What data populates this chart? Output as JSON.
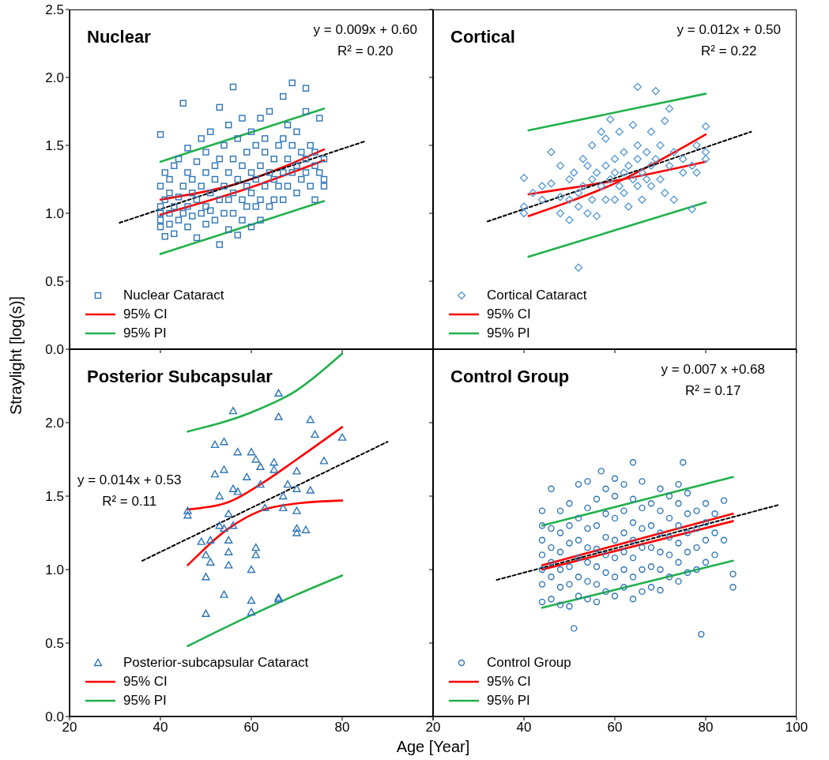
{
  "chart_data": [
    {
      "type": "scatter",
      "title": "Nuclear",
      "ylabel": "Straylight [log(s)]",
      "xlim": [
        20,
        100
      ],
      "ylim": [
        0,
        2.5
      ],
      "xticks": [
        20,
        40,
        60,
        80,
        100
      ],
      "yticks": [
        {
          "value": 0,
          "label": "0.0"
        },
        {
          "value": 0.5,
          "label": "0.5"
        },
        {
          "value": 1,
          "label": "1.0"
        },
        {
          "value": 1.5,
          "label": "1.5"
        },
        {
          "value": 2,
          "label": "2.0"
        },
        {
          "value": 2.5,
          "label": "2.5"
        }
      ],
      "tick_labels": "y",
      "legend": "bottom left",
      "annotations": [
        "y = 0.009x + 0.60",
        "R² = 0.20"
      ],
      "series": [
        {
          "name": "Nuclear Cataract",
          "type": "scatter",
          "marker": "square",
          "color": "#2e75b6",
          "x": [
            40,
            40,
            40,
            40,
            40,
            40,
            41,
            41,
            41,
            42,
            42,
            42,
            42,
            43,
            43,
            43,
            44,
            44,
            44,
            45,
            45,
            45,
            46,
            46,
            46,
            46,
            47,
            47,
            47,
            48,
            48,
            48,
            49,
            49,
            49,
            50,
            50,
            50,
            50,
            51,
            51,
            51,
            52,
            52,
            52,
            53,
            53,
            53,
            53,
            54,
            54,
            54,
            55,
            55,
            55,
            55,
            56,
            56,
            56,
            56,
            57,
            57,
            57,
            58,
            58,
            58,
            58,
            59,
            59,
            59,
            60,
            60,
            60,
            60,
            61,
            61,
            61,
            62,
            62,
            62,
            62,
            63,
            63,
            63,
            64,
            64,
            64,
            65,
            65,
            65,
            66,
            66,
            67,
            67,
            67,
            67,
            68,
            68,
            68,
            69,
            69,
            69,
            70,
            70,
            70,
            71,
            71,
            72,
            72,
            72,
            72,
            73,
            73,
            74,
            74,
            74,
            75,
            75,
            76,
            76,
            76
          ],
          "values": [
            1.58,
            0.95,
            1.05,
            1.2,
            1.0,
            0.9,
            1.1,
            0.83,
            1.3,
            1.0,
            1.15,
            1.25,
            0.92,
            1.05,
            1.35,
            0.85,
            1.12,
            0.95,
            1.4,
            1.81,
            1.0,
            1.2,
            1.05,
            1.3,
            0.9,
            1.48,
            1.15,
            0.98,
            1.25,
            1.1,
            1.38,
            0.82,
            1.0,
            1.2,
            1.55,
            1.05,
            1.3,
            0.92,
            1.45,
            1.15,
            1.02,
            1.6,
            0.95,
            1.25,
            1.35,
            1.78,
            0.77,
            1.1,
            1.4,
            1.2,
            1.0,
            1.5,
            1.1,
            1.3,
            0.88,
            1.65,
            1.93,
            1.15,
            1.4,
            1.0,
            0.84,
            1.25,
            1.55,
            1.1,
            1.35,
            0.95,
            1.7,
            1.2,
            1.45,
            1.05,
            1.3,
            0.9,
            1.6,
            1.15,
            1.25,
            1.5,
            1.05,
            1.35,
            1.1,
            1.7,
            0.95,
            1.2,
            1.45,
            1.55,
            1.3,
            1.05,
            1.75,
            1.25,
            1.4,
            1.1,
            1.5,
            1.2,
            1.86,
            1.3,
            1.1,
            1.55,
            1.4,
            1.2,
            1.65,
            1.96,
            1.3,
            1.5,
            1.35,
            1.15,
            1.6,
            1.45,
            1.25,
            1.92,
            1.4,
            1.3,
            1.75,
            1.2,
            1.5,
            1.35,
            1.45,
            1.1,
            1.3,
            1.7,
            1.4,
            1.25,
            1.2
          ]
        },
        {
          "name": "95% CI",
          "type": "line",
          "marker": "none",
          "line_style": "solid",
          "color": "#ff0000",
          "x": [
            40,
            58,
            76
          ],
          "values": [
            1.1,
            1.23,
            1.47
          ]
        },
        {
          "type": "line",
          "marker": "none",
          "line_style": "solid",
          "color": "#ff0000",
          "x": [
            40,
            58,
            76
          ],
          "values": [
            0.99,
            1.17,
            1.39
          ]
        },
        {
          "name": "95% PI",
          "type": "line",
          "marker": "none",
          "line_style": "solid",
          "color": "#22b14c",
          "x": [
            40,
            76
          ],
          "values": [
            1.38,
            1.77
          ]
        },
        {
          "type": "line",
          "marker": "none",
          "line_style": "solid",
          "color": "#22b14c",
          "x": [
            40,
            76
          ],
          "values": [
            0.7,
            1.09
          ]
        },
        {
          "type": "line",
          "marker": "none",
          "line_style": "dashed",
          "color": "#000000",
          "x": [
            31,
            85
          ],
          "values": [
            0.93,
            1.53
          ]
        }
      ]
    },
    {
      "type": "scatter",
      "title": "Cortical",
      "xlim": [
        20,
        100
      ],
      "ylim": [
        0,
        2.5
      ],
      "xticks": [
        20,
        40,
        60,
        80,
        100
      ],
      "yticks": [
        0,
        0.5,
        1,
        1.5,
        2,
        2.5
      ],
      "tick_labels": false,
      "legend": "bottom left",
      "annotations": [
        "y = 0.012x + 0.50",
        "R² = 0.22"
      ],
      "series": [
        {
          "name": "Cortical Cataract",
          "type": "scatter",
          "marker": "diamond",
          "color": "#5b9bd5",
          "x": [
            40,
            40,
            40,
            42,
            44,
            44,
            46,
            46,
            48,
            48,
            48,
            50,
            50,
            50,
            51,
            52,
            52,
            52,
            53,
            53,
            54,
            54,
            55,
            55,
            55,
            56,
            56,
            57,
            57,
            58,
            58,
            58,
            59,
            59,
            60,
            60,
            60,
            61,
            61,
            62,
            62,
            62,
            63,
            63,
            64,
            64,
            65,
            65,
            65,
            65,
            66,
            66,
            67,
            67,
            68,
            68,
            68,
            69,
            69,
            70,
            70,
            71,
            71,
            72,
            72,
            73,
            73,
            75,
            75,
            77,
            77,
            78,
            78,
            80,
            80,
            80
          ],
          "values": [
            1.26,
            1.05,
            1.0,
            1.15,
            1.2,
            1.1,
            1.22,
            1.45,
            1.35,
            1.12,
            1.0,
            1.25,
            0.95,
            1.1,
            1.3,
            0.6,
            1.05,
            1.15,
            1.4,
            1.2,
            1.0,
            1.35,
            1.5,
            1.25,
            1.1,
            0.98,
            1.3,
            1.6,
            1.2,
            1.55,
            1.1,
            1.35,
            1.69,
            1.25,
            1.4,
            1.1,
            1.3,
            1.6,
            1.2,
            1.3,
            1.45,
            1.15,
            1.35,
            1.05,
            1.65,
            1.25,
            1.93,
            1.4,
            1.2,
            1.5,
            1.3,
            1.1,
            1.45,
            1.25,
            1.6,
            1.2,
            1.35,
            1.9,
            1.4,
            1.25,
            1.5,
            1.68,
            1.15,
            1.77,
            1.35,
            1.1,
            1.45,
            1.4,
            1.3,
            1.35,
            1.03,
            1.5,
            1.3,
            1.64,
            1.4,
            1.45
          ]
        },
        {
          "name": "95% CI",
          "type": "line",
          "marker": "none",
          "line_style": "solid",
          "color": "#ff0000",
          "x": [
            41,
            60,
            80
          ],
          "values": [
            1.14,
            1.24,
            1.38
          ]
        },
        {
          "type": "line",
          "marker": "none",
          "line_style": "solid",
          "color": "#ff0000",
          "x": [
            41,
            60,
            80
          ],
          "values": [
            0.98,
            1.22,
            1.58
          ]
        },
        {
          "name": "95% PI",
          "type": "line",
          "marker": "none",
          "line_style": "solid",
          "color": "#22b14c",
          "x": [
            41,
            80
          ],
          "values": [
            1.61,
            1.88
          ]
        },
        {
          "type": "line",
          "marker": "none",
          "line_style": "solid",
          "color": "#22b14c",
          "x": [
            41,
            80
          ],
          "values": [
            0.68,
            1.08
          ]
        },
        {
          "type": "line",
          "marker": "none",
          "line_style": "dashed",
          "color": "#000000",
          "x": [
            32,
            90
          ],
          "values": [
            0.94,
            1.6
          ]
        }
      ]
    },
    {
      "type": "scatter",
      "title": "Posterior Subcapsular",
      "xlabel": "Age [Year]",
      "xlim": [
        20,
        100
      ],
      "ylim": [
        0,
        2.5
      ],
      "xticks": [
        20,
        40,
        60,
        80,
        {
          "value": 100,
          "label": null
        }
      ],
      "yticks": [
        {
          "value": 0,
          "label": "0.0"
        },
        {
          "value": 0.5,
          "label": "0.5"
        },
        {
          "value": 1,
          "label": "1.0"
        },
        {
          "value": 1.5,
          "label": "1.5"
        },
        {
          "value": 2,
          "label": "2.0"
        }
      ],
      "legend": "bottom left",
      "annotations": [
        "y = 0.014x + 0.53",
        "R² = 0.11"
      ],
      "series": [
        {
          "name": "Posterior-subcapsular Cataract",
          "type": "scatter",
          "marker": "triangle",
          "color": "#2e75b6",
          "x": [
            46,
            46,
            49,
            50,
            50,
            50,
            51,
            51,
            52,
            52,
            53,
            53,
            54,
            54,
            54,
            54,
            55,
            55,
            55,
            55,
            56,
            56,
            56,
            57,
            57,
            59,
            60,
            60,
            60,
            60,
            61,
            61,
            61,
            62,
            62,
            63,
            65,
            65,
            66,
            66,
            66,
            66,
            67,
            67,
            68,
            70,
            70,
            70,
            70,
            70,
            72,
            73,
            73,
            74,
            76,
            80
          ],
          "values": [
            1.4,
            1.37,
            1.19,
            0.95,
            0.7,
            1.1,
            1.2,
            1.05,
            1.65,
            1.85,
            1.3,
            1.5,
            1.87,
            1.68,
            1.28,
            0.83,
            1.03,
            1.12,
            1.2,
            1.38,
            1.55,
            1.3,
            2.08,
            1.8,
            1.53,
            1.63,
            1.8,
            1.0,
            0.79,
            0.71,
            1.75,
            1.15,
            1.1,
            1.7,
            1.58,
            1.42,
            1.73,
            1.68,
            2.2,
            2.04,
            0.8,
            0.81,
            1.5,
            1.42,
            1.58,
            1.67,
            1.55,
            1.4,
            1.28,
            1.25,
            1.27,
            2.02,
            1.54,
            1.92,
            1.74,
            1.9
          ]
        },
        {
          "name": "95% CI",
          "type": "line",
          "marker": "none",
          "line_style": "solid",
          "color": "#ff0000",
          "x": [
            46,
            55,
            62,
            70,
            80
          ],
          "values": [
            1.41,
            1.46,
            1.58,
            1.75,
            1.97
          ]
        },
        {
          "type": "line",
          "marker": "none",
          "line_style": "solid",
          "color": "#ff0000",
          "x": [
            46,
            55,
            62,
            70,
            80
          ],
          "values": [
            1.03,
            1.28,
            1.4,
            1.45,
            1.47
          ]
        },
        {
          "name": "95% PI",
          "type": "line",
          "marker": "none",
          "line_style": "solid",
          "color": "#22b14c",
          "x": [
            46,
            60,
            70,
            80
          ],
          "values": [
            1.94,
            2.07,
            2.22,
            2.47
          ]
        },
        {
          "type": "line",
          "marker": "none",
          "line_style": "solid",
          "color": "#22b14c",
          "x": [
            46,
            60,
            70,
            80
          ],
          "values": [
            0.48,
            0.69,
            0.83,
            0.96
          ]
        },
        {
          "type": "line",
          "marker": "none",
          "line_style": "dashed",
          "color": "#000000",
          "x": [
            36,
            90
          ],
          "values": [
            1.06,
            1.87
          ]
        }
      ]
    },
    {
      "type": "scatter",
      "title": "Control Group",
      "xlim": [
        20,
        100
      ],
      "ylim": [
        0,
        2.5
      ],
      "xticks": [
        20,
        40,
        60,
        80,
        100
      ],
      "yticks": [
        0,
        0.5,
        1,
        1.5,
        2,
        2.5
      ],
      "tick_labels": "x",
      "legend": "bottom left",
      "annotations": [
        "y = 0.007 x +0.68",
        "R² = 0.17"
      ],
      "series": [
        {
          "name": "Control Group",
          "type": "scatter",
          "marker": "circle",
          "color": "#2e75b6",
          "x": [
            44,
            44,
            44,
            44,
            44,
            44,
            44,
            46,
            46,
            46,
            46,
            46,
            46,
            48,
            48,
            48,
            48,
            48,
            48,
            50,
            50,
            50,
            50,
            50,
            50,
            51,
            52,
            52,
            52,
            52,
            52,
            52,
            54,
            54,
            54,
            54,
            54,
            54,
            54,
            56,
            56,
            56,
            56,
            56,
            56,
            57,
            58,
            58,
            58,
            58,
            58,
            58,
            60,
            60,
            60,
            60,
            60,
            60,
            60,
            62,
            62,
            62,
            62,
            62,
            62,
            64,
            64,
            64,
            64,
            64,
            64,
            64,
            66,
            66,
            66,
            66,
            66,
            66,
            68,
            68,
            68,
            68,
            68,
            70,
            70,
            70,
            70,
            70,
            70,
            72,
            72,
            72,
            72,
            72,
            74,
            74,
            74,
            74,
            74,
            74,
            75,
            76,
            76,
            76,
            76,
            76,
            78,
            78,
            78,
            78,
            79,
            80,
            80,
            80,
            80,
            82,
            82,
            82,
            84,
            84,
            86,
            86
          ],
          "values": [
            0.78,
            0.9,
            1.0,
            1.1,
            1.2,
            1.3,
            1.4,
            0.8,
            0.95,
            1.05,
            1.15,
            1.28,
            1.55,
            0.76,
            0.88,
            1.0,
            1.12,
            1.25,
            1.4,
            0.75,
            0.9,
            1.02,
            1.18,
            1.3,
            1.45,
            0.6,
            0.82,
            0.95,
            1.08,
            1.2,
            1.35,
            1.58,
            0.8,
            0.92,
            1.05,
            1.15,
            1.28,
            1.42,
            1.6,
            0.78,
            0.9,
            1.02,
            1.14,
            1.3,
            1.48,
            1.67,
            0.85,
            0.98,
            1.1,
            1.22,
            1.38,
            1.55,
            0.82,
            0.95,
            1.08,
            1.2,
            1.35,
            1.5,
            1.62,
            0.88,
            1.0,
            1.12,
            1.25,
            1.4,
            1.58,
            0.8,
            0.95,
            1.08,
            1.2,
            1.32,
            1.48,
            1.73,
            0.85,
            1.0,
            1.15,
            1.28,
            1.42,
            1.6,
            0.88,
            1.02,
            1.15,
            1.3,
            1.45,
            0.86,
            1.0,
            1.12,
            1.25,
            1.4,
            1.55,
            0.95,
            1.1,
            1.22,
            1.35,
            1.5,
            0.92,
            1.05,
            1.18,
            1.3,
            1.45,
            1.58,
            1.73,
            0.98,
            1.12,
            1.25,
            1.38,
            1.52,
            1.0,
            1.15,
            1.28,
            1.4,
            0.56,
            1.05,
            1.2,
            1.32,
            1.45,
            1.1,
            1.25,
            1.38,
            1.2,
            1.47,
            0.88,
            0.97
          ]
        },
        {
          "name": "95% CI",
          "type": "line",
          "marker": "none",
          "line_style": "solid",
          "color": "#ff0000",
          "x": [
            44,
            86
          ],
          "values": [
            1.03,
            1.38
          ]
        },
        {
          "type": "line",
          "marker": "none",
          "line_style": "solid",
          "color": "#ff0000",
          "x": [
            44,
            86
          ],
          "values": [
            1.0,
            1.33
          ]
        },
        {
          "name": "95% PI",
          "type": "line",
          "marker": "none",
          "line_style": "solid",
          "color": "#22b14c",
          "x": [
            44,
            86
          ],
          "values": [
            1.3,
            1.63
          ]
        },
        {
          "type": "line",
          "marker": "none",
          "line_style": "solid",
          "color": "#22b14c",
          "x": [
            44,
            86
          ],
          "values": [
            0.74,
            1.06
          ]
        },
        {
          "type": "line",
          "marker": "none",
          "line_style": "dashed",
          "color": "#000000",
          "x": [
            34,
            96
          ],
          "values": [
            0.93,
            1.44
          ]
        }
      ]
    }
  ]
}
